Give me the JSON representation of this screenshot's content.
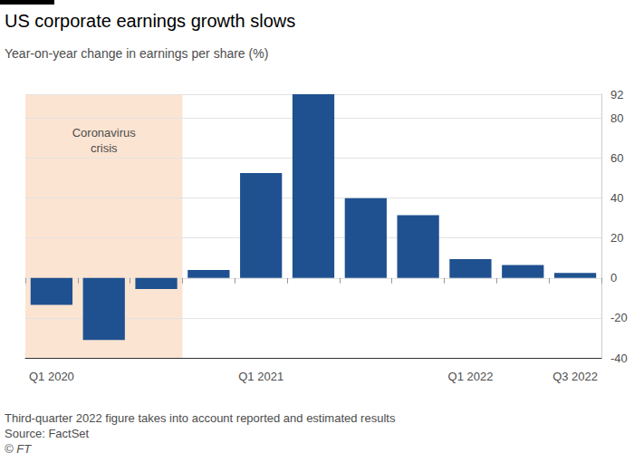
{
  "chart_data": {
    "type": "bar",
    "title": "US corporate earnings growth slows",
    "subtitle": "Year-on-year change in earnings per share (%)",
    "categories": [
      "Q1 2020",
      null,
      null,
      null,
      "Q1 2021",
      null,
      null,
      null,
      "Q1 2022",
      null,
      "Q3 2022"
    ],
    "values": [
      -13.5,
      -31,
      -5.5,
      4,
      52.5,
      92,
      40,
      31.5,
      9.5,
      6.5,
      2.5
    ],
    "color": "#1f5190",
    "ylim": [
      -40,
      92
    ],
    "yticks": [
      -40,
      -20,
      0,
      20,
      40,
      60,
      80
    ],
    "grid": true,
    "annotations": [
      {
        "text": "Coronavirus crisis",
        "from_index": 0,
        "to_index": 2
      }
    ],
    "notes": [
      "Third-quarter 2022 figure takes into account reported and estimated results",
      "Source: FactSet",
      "© FT"
    ]
  }
}
